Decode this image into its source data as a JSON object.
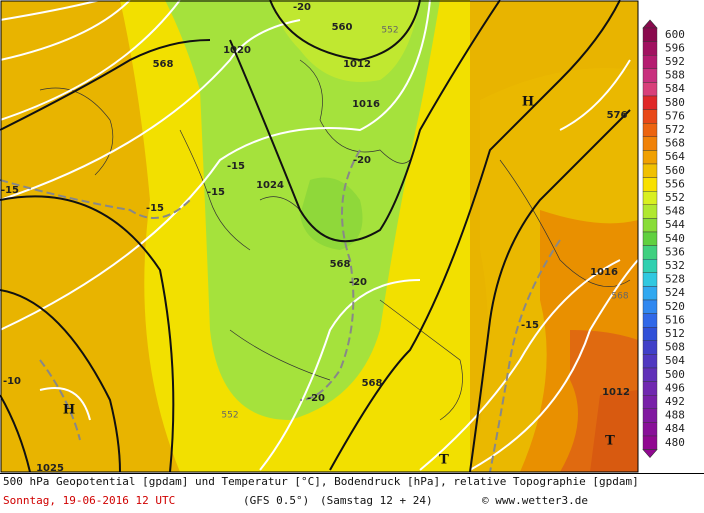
{
  "map": {
    "labels": [
      "568",
      "1020",
      "560",
      "552",
      "-20",
      "1012",
      "1016",
      "-20",
      "1024",
      "-15",
      "-15",
      "-15",
      "568",
      "-20",
      "568",
      "-20",
      "552",
      "1025",
      "-10",
      "-15",
      "1016",
      "568",
      "-15",
      "1012",
      "576",
      "H",
      "H",
      "T",
      "T"
    ]
  },
  "legend": [
    {
      "label": "600",
      "color": "#8a0a4e"
    },
    {
      "label": "596",
      "color": "#a01260"
    },
    {
      "label": "592",
      "color": "#b41c70"
    },
    {
      "label": "588",
      "color": "#c8307e"
    },
    {
      "label": "584",
      "color": "#d8407a"
    },
    {
      "label": "580",
      "color": "#e02828"
    },
    {
      "label": "576",
      "color": "#e84818"
    },
    {
      "label": "572",
      "color": "#ec6410"
    },
    {
      "label": "568",
      "color": "#f08208"
    },
    {
      "label": "564",
      "color": "#f0a000"
    },
    {
      "label": "560",
      "color": "#f0c000"
    },
    {
      "label": "556",
      "color": "#f8e000"
    },
    {
      "label": "552",
      "color": "#d8f020"
    },
    {
      "label": "548",
      "color": "#b0e830"
    },
    {
      "label": "544",
      "color": "#88dc38"
    },
    {
      "label": "540",
      "color": "#60d040"
    },
    {
      "label": "536",
      "color": "#40d080"
    },
    {
      "label": "532",
      "color": "#30d0b0"
    },
    {
      "label": "528",
      "color": "#30c8e0"
    },
    {
      "label": "524",
      "color": "#30a8f0"
    },
    {
      "label": "520",
      "color": "#3088f0"
    },
    {
      "label": "516",
      "color": "#3068e8"
    },
    {
      "label": "512",
      "color": "#3050d8"
    },
    {
      "label": "508",
      "color": "#4040c8"
    },
    {
      "label": "504",
      "color": "#5038c0"
    },
    {
      "label": "500",
      "color": "#6030b8"
    },
    {
      "label": "496",
      "color": "#7028b0"
    },
    {
      "label": "492",
      "color": "#7820a8"
    },
    {
      "label": "488",
      "color": "#8018a0"
    },
    {
      "label": "484",
      "color": "#881098"
    },
    {
      "label": "480",
      "color": "#900890"
    }
  ],
  "footer": {
    "description": "500 hPa Geopotential [gpdam] und Temperatur [°C], Bodendruck [hPa], relative Topographie [gpdam]",
    "date": "Sonntag, 19-06-2016  12 UTC",
    "model": "(GFS 0.5°)",
    "run": "(Samstag 12 + 24)",
    "copyright": "© www.wetter3.de"
  }
}
